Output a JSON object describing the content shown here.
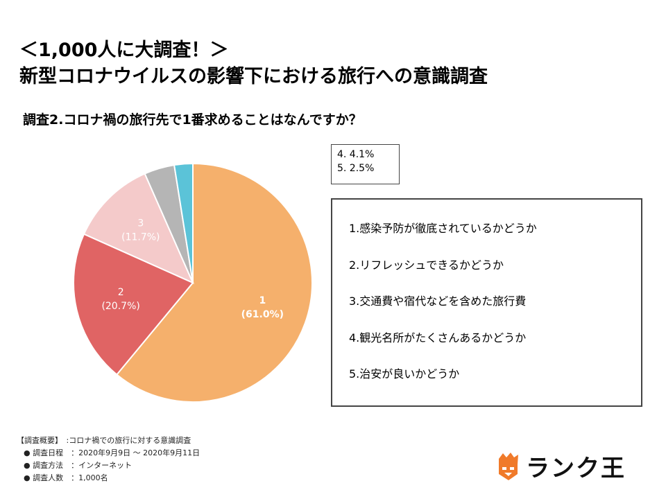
{
  "header": {
    "title_line1": "＜1,000人に大調査！＞",
    "title_line2": "新型コロナウイルスの影響下における旅行への意識調査"
  },
  "question": "調査2.コロナ禍の旅行先で1番求めることはなんですか？",
  "chart_data": {
    "type": "pie",
    "categories": [
      "1",
      "2",
      "3",
      "4",
      "5"
    ],
    "values": [
      61.0,
      20.7,
      11.7,
      4.1,
      2.5
    ],
    "labels": [
      "1\n(61.0%)",
      "2\n(20.7%)",
      "3\n(11.7%)",
      "",
      ""
    ],
    "colors": [
      "#f5b06c",
      "#e06464",
      "#f4caca",
      "#b5b5b5",
      "#5bc3d8"
    ],
    "label_colors": [
      "#ffffff",
      "#ffffff",
      "#ffffff",
      "",
      ""
    ],
    "start": "12 o'clock, clockwise"
  },
  "small_legend": [
    "4. 4.1%",
    "5. 2.5%"
  ],
  "options": [
    "1.感染予防が徹底されているかどうか",
    "2.リフレッシュできるかどうか",
    "3.交通費や宿代などを含めた旅行費",
    "4.観光名所がたくさんあるかどうか",
    "5.治安が良いかどうか"
  ],
  "summary": {
    "heading": "【調査概要】　:コロナ禍での旅行に対する意識調査",
    "rows": [
      "●  調査日程　：2020年9月9日  ～  2020年9月11日",
      "●  調査方法　：インターネット",
      "●  調査人数　：1,000名"
    ]
  },
  "logo": {
    "text": "ランク王",
    "icon": "crown-mascot-icon",
    "accent": "#f07a2a"
  }
}
